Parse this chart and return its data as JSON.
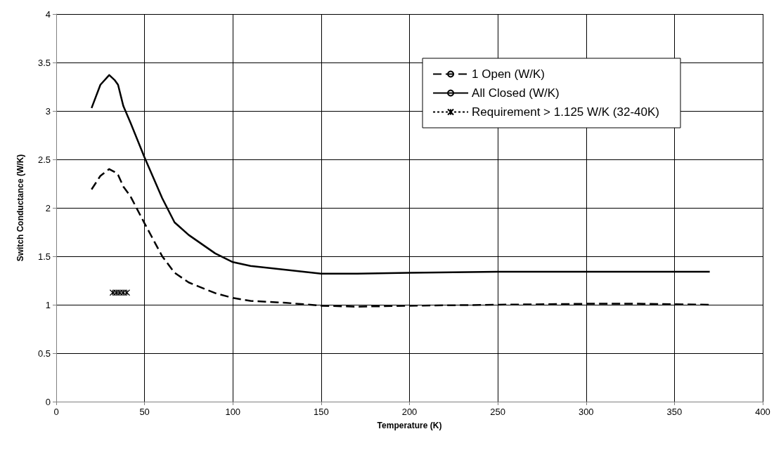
{
  "chart_data": {
    "type": "line",
    "xlabel": "Temperature (K)",
    "ylabel": "Switch Conductance (W/K)",
    "xlim": [
      0,
      400
    ],
    "xticks": [
      0,
      50,
      100,
      150,
      200,
      250,
      300,
      350,
      400
    ],
    "ylim": [
      0,
      4
    ],
    "yticks": [
      0,
      0.5,
      1,
      1.5,
      2,
      2.5,
      3,
      3.5,
      4
    ],
    "grid": true,
    "legend": "top right",
    "series": [
      {
        "name": "1 Open (W/K)",
        "color": "#000000",
        "line_style": "dashed",
        "marker": "none",
        "x": [
          20,
          25,
          30,
          33,
          35,
          38,
          42,
          50,
          60,
          67,
          75,
          90,
          100,
          110,
          130,
          150,
          170,
          200,
          250,
          300,
          330,
          370
        ],
        "values": [
          2.19,
          2.33,
          2.4,
          2.37,
          2.34,
          2.22,
          2.12,
          1.84,
          1.5,
          1.33,
          1.23,
          1.12,
          1.07,
          1.04,
          1.02,
          0.99,
          0.98,
          0.99,
          1.0,
          1.01,
          1.01,
          1.0
        ]
      },
      {
        "name": "All Closed (W/K)",
        "color": "#000000",
        "line_style": "solid",
        "marker": "none",
        "x": [
          20,
          25,
          30,
          33,
          35,
          38,
          42,
          50,
          60,
          67,
          75,
          90,
          100,
          110,
          150,
          170,
          200,
          250,
          300,
          370
        ],
        "values": [
          3.03,
          3.27,
          3.37,
          3.32,
          3.27,
          3.05,
          2.88,
          2.52,
          2.1,
          1.85,
          1.72,
          1.53,
          1.44,
          1.4,
          1.32,
          1.32,
          1.33,
          1.34,
          1.34,
          1.34
        ]
      },
      {
        "name": "Requirement > 1.125 W/K (32-40K)",
        "color": "#000000",
        "line_style": "dotted",
        "marker": "cross",
        "x": [
          32,
          34,
          36,
          38,
          40
        ],
        "values": [
          1.125,
          1.125,
          1.125,
          1.125,
          1.125
        ]
      }
    ]
  }
}
